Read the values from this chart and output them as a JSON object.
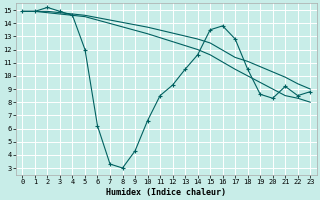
{
  "xlabel": "Humidex (Indice chaleur)",
  "background_color": "#c8ede8",
  "grid_color": "#ffffff",
  "line_color": "#006060",
  "xlim": [
    -0.5,
    23.5
  ],
  "ylim": [
    2.5,
    15.5
  ],
  "xticks": [
    0,
    1,
    2,
    3,
    4,
    5,
    6,
    7,
    8,
    9,
    10,
    11,
    12,
    13,
    14,
    15,
    16,
    17,
    18,
    19,
    20,
    21,
    22,
    23
  ],
  "yticks": [
    3,
    4,
    5,
    6,
    7,
    8,
    9,
    10,
    11,
    12,
    13,
    14,
    15
  ],
  "line1_x": [
    0,
    1,
    2,
    3,
    4,
    5,
    6,
    7,
    8,
    9,
    10,
    11,
    12,
    13,
    14,
    15,
    16,
    17,
    18,
    19,
    20,
    21,
    22,
    23
  ],
  "line1_y": [
    14.9,
    14.9,
    15.2,
    14.9,
    14.6,
    12.0,
    6.2,
    3.3,
    3.0,
    4.3,
    6.6,
    8.5,
    9.3,
    10.5,
    11.6,
    13.5,
    13.8,
    12.8,
    10.5,
    8.6,
    8.3,
    9.2,
    8.5,
    8.8
  ],
  "line2_x": [
    0,
    1,
    2,
    3,
    4,
    5,
    10,
    14,
    15,
    17,
    18,
    19,
    20,
    21,
    22,
    23
  ],
  "line2_y": [
    14.9,
    14.9,
    14.9,
    14.8,
    14.7,
    14.6,
    13.7,
    12.8,
    12.5,
    11.4,
    11.1,
    10.7,
    10.3,
    9.9,
    9.4,
    9.0
  ],
  "line3_x": [
    0,
    1,
    2,
    3,
    4,
    5,
    10,
    14,
    15,
    17,
    18,
    19,
    20,
    21,
    22,
    23
  ],
  "line3_y": [
    14.9,
    14.9,
    14.8,
    14.7,
    14.6,
    14.5,
    13.2,
    12.0,
    11.6,
    10.5,
    10.0,
    9.5,
    9.0,
    8.5,
    8.3,
    8.0
  ]
}
